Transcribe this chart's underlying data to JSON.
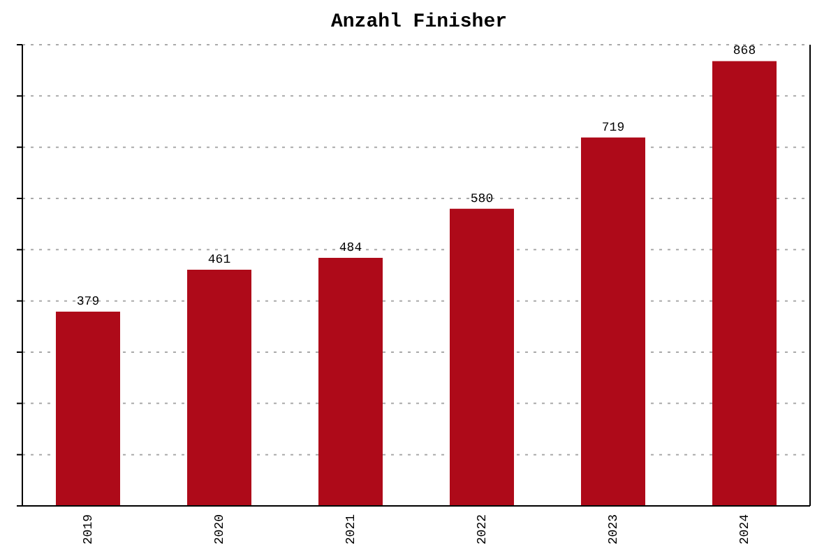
{
  "chart_data": {
    "type": "bar",
    "title": "Anzahl Finisher",
    "categories": [
      "2019",
      "2020",
      "2021",
      "2022",
      "2023",
      "2024"
    ],
    "values": [
      379,
      461,
      484,
      580,
      719,
      868
    ],
    "color": "#ae0a19",
    "ylim": [
      0,
      900
    ],
    "grid": "y",
    "tick_labels": "x",
    "data_labels": true,
    "legend": false
  }
}
